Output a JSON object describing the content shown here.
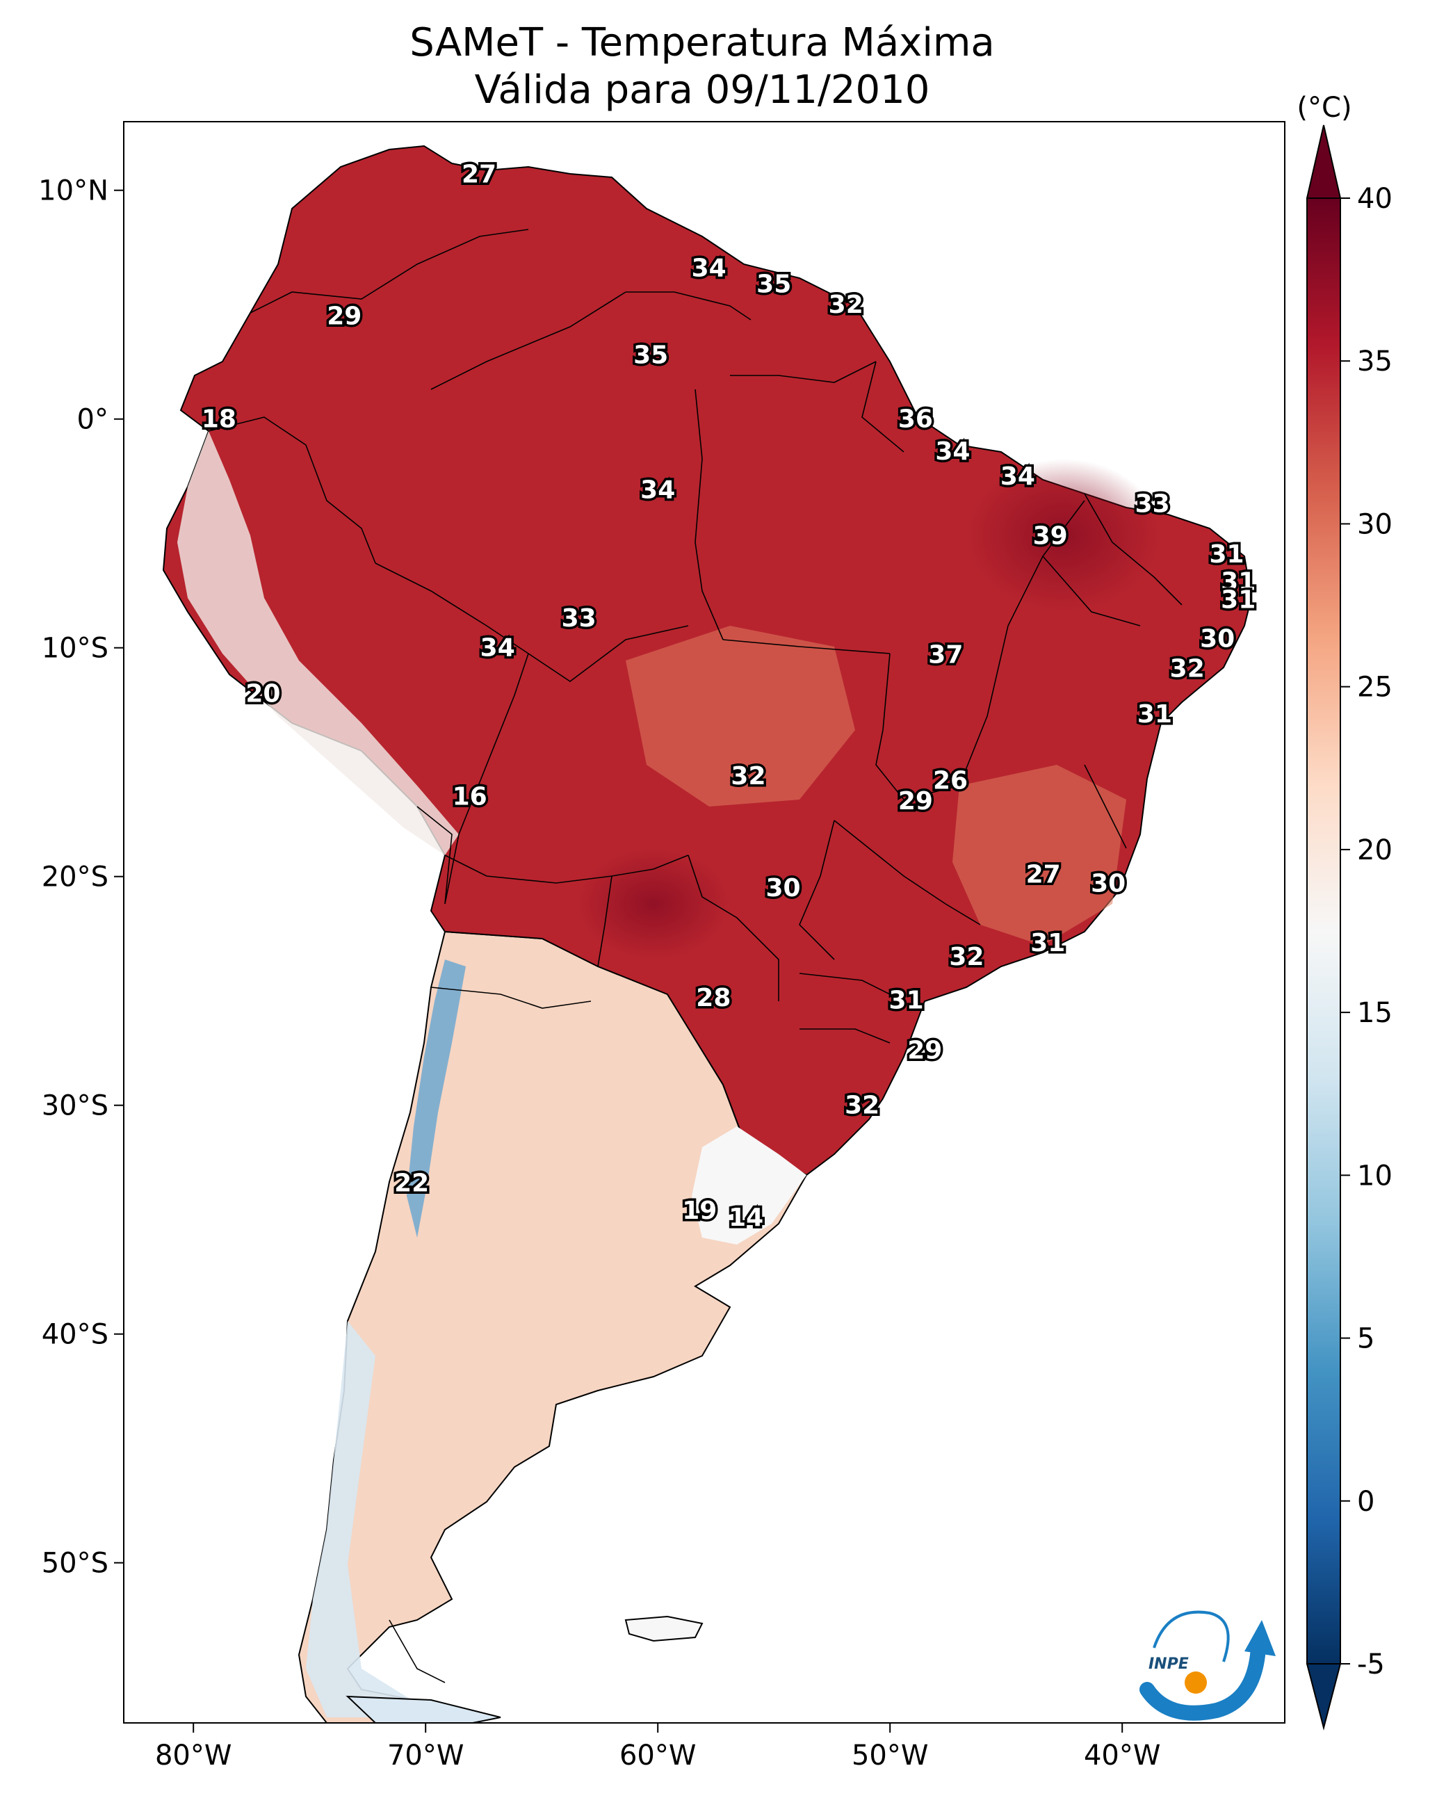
{
  "title": {
    "line1": "SAMeT - Temperatura Máxima",
    "line2": "Válida para 09/11/2010"
  },
  "map": {
    "lon_range": [
      -83,
      -33
    ],
    "lat_range": [
      -57,
      13
    ],
    "x_ticks": [
      {
        "lon": -80,
        "label": "80°W"
      },
      {
        "lon": -70,
        "label": "70°W"
      },
      {
        "lon": -60,
        "label": "60°W"
      },
      {
        "lon": -50,
        "label": "50°W"
      },
      {
        "lon": -40,
        "label": "40°W"
      }
    ],
    "y_ticks": [
      {
        "lat": 10,
        "label": "10°N"
      },
      {
        "lat": 0,
        "label": "0°"
      },
      {
        "lat": -10,
        "label": "10°S"
      },
      {
        "lat": -20,
        "label": "20°S"
      },
      {
        "lat": -30,
        "label": "30°S"
      },
      {
        "lat": -40,
        "label": "40°S"
      },
      {
        "lat": -50,
        "label": "50°S"
      }
    ],
    "station_values": [
      {
        "lon": -67.7,
        "lat": 10.7,
        "value": "27"
      },
      {
        "lon": -73.5,
        "lat": 4.5,
        "value": "29"
      },
      {
        "lon": -57.8,
        "lat": 6.6,
        "value": "34"
      },
      {
        "lon": -55.0,
        "lat": 5.9,
        "value": "35"
      },
      {
        "lon": -51.9,
        "lat": 5.0,
        "value": "32"
      },
      {
        "lon": -60.3,
        "lat": 2.8,
        "value": "35"
      },
      {
        "lon": -48.9,
        "lat": 0.0,
        "value": "36"
      },
      {
        "lon": -47.3,
        "lat": -1.4,
        "value": "34"
      },
      {
        "lon": -44.5,
        "lat": -2.5,
        "value": "34"
      },
      {
        "lon": -38.7,
        "lat": -3.7,
        "value": "33"
      },
      {
        "lon": -43.1,
        "lat": -5.1,
        "value": "39"
      },
      {
        "lon": -78.9,
        "lat": 0.0,
        "value": "18"
      },
      {
        "lon": -60.0,
        "lat": -3.1,
        "value": "34"
      },
      {
        "lon": -35.5,
        "lat": -5.9,
        "value": "31"
      },
      {
        "lon": -35.0,
        "lat": -7.1,
        "value": "31"
      },
      {
        "lon": -35.0,
        "lat": -7.9,
        "value": "31"
      },
      {
        "lon": -35.9,
        "lat": -9.6,
        "value": "30"
      },
      {
        "lon": -37.2,
        "lat": -10.9,
        "value": "32"
      },
      {
        "lon": -38.6,
        "lat": -12.9,
        "value": "31"
      },
      {
        "lon": -47.6,
        "lat": -10.3,
        "value": "37"
      },
      {
        "lon": -63.4,
        "lat": -8.7,
        "value": "33"
      },
      {
        "lon": -66.9,
        "lat": -10.0,
        "value": "34"
      },
      {
        "lon": -77.0,
        "lat": -12.0,
        "value": "20"
      },
      {
        "lon": -68.1,
        "lat": -16.5,
        "value": "16"
      },
      {
        "lon": -56.1,
        "lat": -15.6,
        "value": "32"
      },
      {
        "lon": -47.4,
        "lat": -15.8,
        "value": "26"
      },
      {
        "lon": -48.9,
        "lat": -16.7,
        "value": "29"
      },
      {
        "lon": -43.4,
        "lat": -19.9,
        "value": "27"
      },
      {
        "lon": -40.6,
        "lat": -20.3,
        "value": "30"
      },
      {
        "lon": -54.6,
        "lat": -20.5,
        "value": "30"
      },
      {
        "lon": -43.2,
        "lat": -22.9,
        "value": "31"
      },
      {
        "lon": -46.7,
        "lat": -23.5,
        "value": "32"
      },
      {
        "lon": -49.3,
        "lat": -25.4,
        "value": "31"
      },
      {
        "lon": -57.6,
        "lat": -25.3,
        "value": "28"
      },
      {
        "lon": -48.5,
        "lat": -27.6,
        "value": "29"
      },
      {
        "lon": -51.2,
        "lat": -30.0,
        "value": "32"
      },
      {
        "lon": -70.6,
        "lat": -33.4,
        "value": "22"
      },
      {
        "lon": -58.2,
        "lat": -34.6,
        "value": "19"
      },
      {
        "lon": -56.2,
        "lat": -34.9,
        "value": "14"
      }
    ]
  },
  "colorbar": {
    "unit": "(°C)",
    "min": -5,
    "max": 40,
    "ticks": [
      "-5",
      "0",
      "5",
      "10",
      "15",
      "20",
      "25",
      "30",
      "35",
      "40"
    ],
    "colors": [
      "#053061",
      "#2166ac",
      "#4393c3",
      "#92c5de",
      "#d1e5f0",
      "#f7f7f7",
      "#fddbc7",
      "#f4a582",
      "#d6604d",
      "#b2182b",
      "#67001f"
    ]
  },
  "logo": {
    "text": "INPE",
    "colors": {
      "blue": "#1a7fc4",
      "orange": "#f39200"
    }
  }
}
